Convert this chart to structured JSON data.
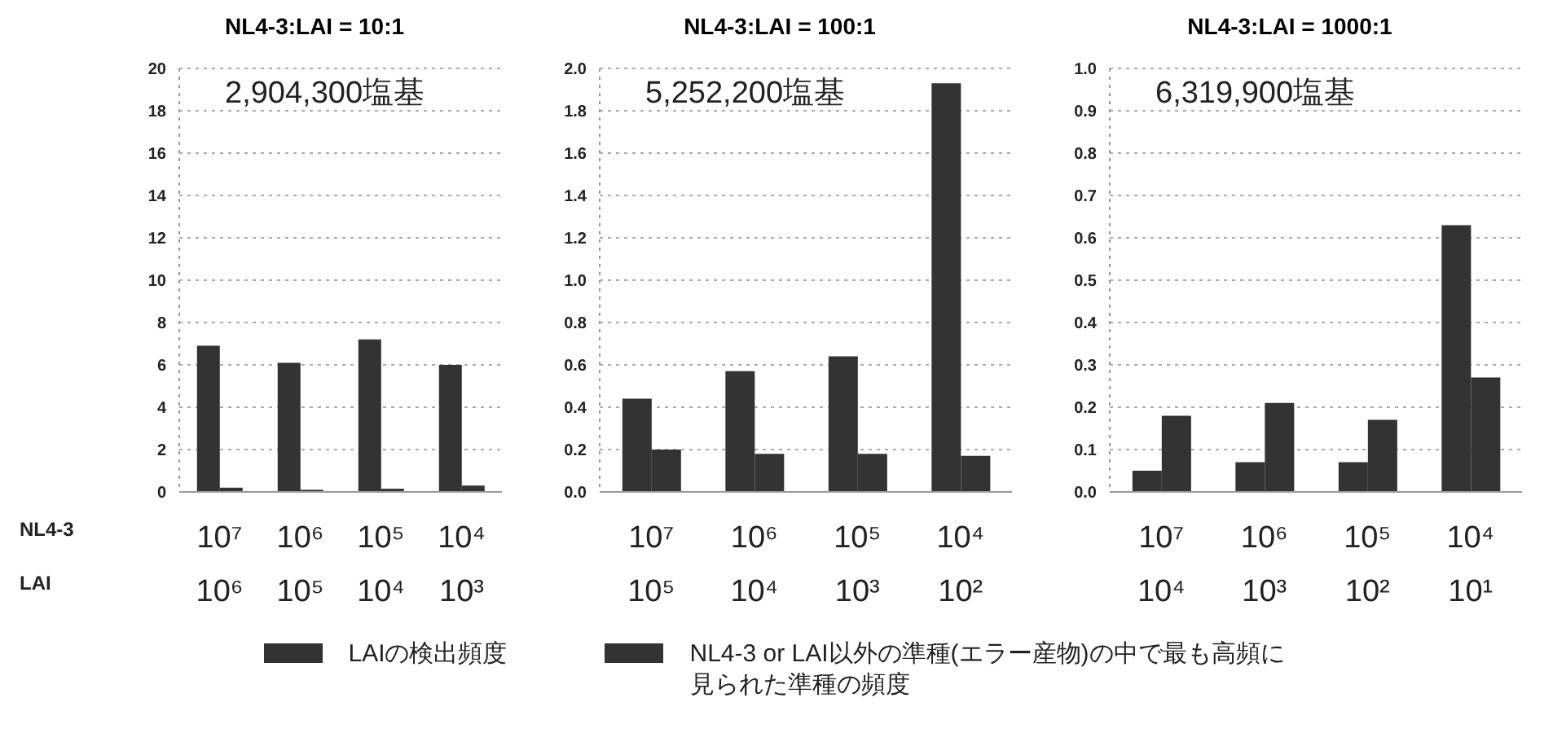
{
  "chart_data": [
    {
      "type": "bar",
      "title": "NL4-3:LAI = 10:1",
      "categories": [
        "10⁷\n10⁶",
        "10⁶\n10⁵",
        "10⁵\n10⁴",
        "10⁴\n10³"
      ],
      "series": [
        {
          "name": "LAIの検出頻度",
          "color": "#333333",
          "values": [
            6.9,
            6.1,
            7.2,
            6.0
          ]
        },
        {
          "name": "NL4-3 or LAI以外の準種(エラー産物)の中で最も高頻に見られた準種の頻度",
          "color": "#333333",
          "values": [
            0.2,
            0.1,
            0.15,
            0.3
          ]
        }
      ],
      "ylim": [
        0,
        20
      ],
      "yticks": [
        0,
        2,
        4,
        6,
        8,
        10,
        12,
        14,
        16,
        18,
        20
      ],
      "grid": "y",
      "legend": "bottom",
      "annotations": [
        "2,904,300塩基",
        "NL4-3",
        "LAI"
      ]
    },
    {
      "type": "bar",
      "title": "NL4-3:LAI = 100:1",
      "categories": [
        "10⁷\n10⁵",
        "10⁶\n10⁴",
        "10⁵\n10³",
        "10⁴\n10²"
      ],
      "series": [
        {
          "color": "#333333",
          "values": [
            0.44,
            0.57,
            0.64,
            1.93
          ]
        },
        {
          "color": "#333333",
          "values": [
            0.2,
            0.18,
            0.18,
            0.17
          ]
        }
      ],
      "ylim": [
        0,
        2
      ],
      "yticks": [
        {
          "value": 0,
          "label": "0.0"
        },
        0.2,
        0.4,
        0.6,
        0.8,
        {
          "value": 1,
          "label": "1.0"
        },
        1.2,
        1.4,
        1.6,
        1.8,
        {
          "value": 2,
          "label": "2.0"
        }
      ],
      "grid": "y",
      "annotations": [
        "5,252,200塩基"
      ]
    },
    {
      "type": "bar",
      "title": "NL4-3:LAI = 1000:1",
      "categories": [
        "10⁷\n10⁴",
        "10⁶\n10³",
        "10⁵\n10²",
        "10⁴\n10¹"
      ],
      "series": [
        {
          "color": "#333333",
          "values": [
            0.05,
            0.07,
            0.07,
            0.63
          ]
        },
        {
          "color": "#333333",
          "values": [
            0.18,
            0.21,
            0.17,
            0.27
          ]
        }
      ],
      "ylim": [
        0,
        1
      ],
      "yticks": [
        {
          "value": 0,
          "label": "0.0"
        },
        0.1,
        0.2,
        0.3,
        0.4,
        0.5,
        0.6,
        0.7,
        0.8,
        0.9,
        {
          "value": 1,
          "label": "1.0"
        }
      ],
      "grid": "y",
      "annotations": [
        "6,319,900塩基"
      ]
    }
  ]
}
